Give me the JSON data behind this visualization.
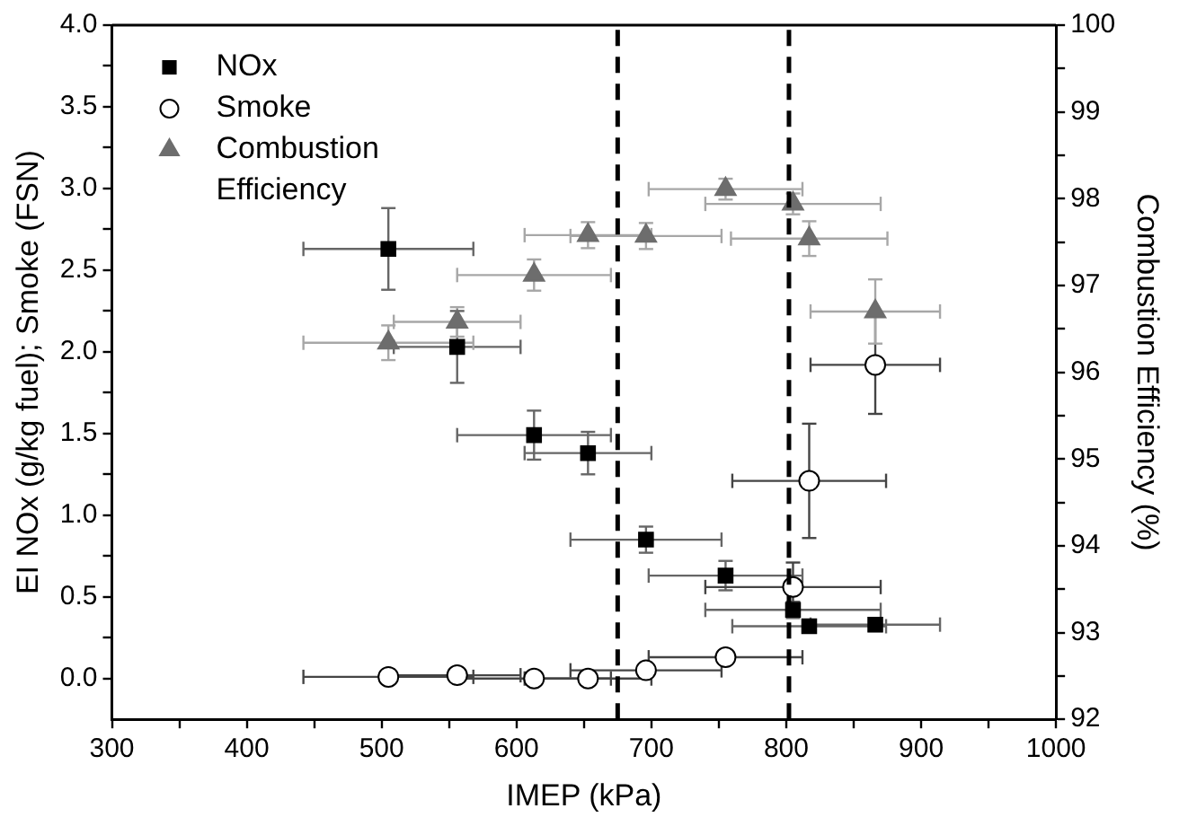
{
  "chart_data": {
    "type": "scatter",
    "xlabel": "IMEP (kPa)",
    "ylabel": "EI NOx (g/kg fuel); Smoke (FSN)",
    "y2label": "Combustion Efficiency (%)",
    "x": [
      505,
      556,
      613,
      653,
      696,
      755,
      805,
      817,
      866
    ],
    "series": [
      {
        "name": "NOx",
        "color": "#000000",
        "marker": "square",
        "values": [
          2.63,
          2.03,
          1.49,
          1.38,
          0.85,
          0.63,
          0.42,
          0.32,
          0.33
        ],
        "errors": [
          0.25,
          0.22,
          0.15,
          0.13,
          0.08,
          0.09,
          0.05,
          0.04,
          0.04
        ],
        "xerrors": [
          63,
          47,
          57,
          47,
          56,
          57,
          65,
          57,
          48
        ]
      },
      {
        "name": "Smoke",
        "color": "#ffffff",
        "marker": "circle",
        "values": [
          0.01,
          0.02,
          0.0,
          0.0,
          0.05,
          0.13,
          0.56,
          1.21,
          1.92
        ],
        "errors": [
          null,
          null,
          null,
          null,
          null,
          null,
          0.15,
          0.35,
          0.3
        ],
        "xerrors": [
          63,
          47,
          57,
          47,
          56,
          57,
          65,
          57,
          48
        ]
      },
      {
        "name": "Combustion Efficiency",
        "color": "#6d6d6d",
        "marker": "triangle",
        "axis": "y2",
        "values": [
          96.34,
          96.58,
          97.12,
          97.58,
          97.57,
          98.11,
          97.94,
          97.54,
          96.7
        ],
        "errors": [
          0.2,
          0.17,
          0.18,
          0.15,
          0.15,
          0.12,
          0.12,
          0.2,
          0.37
        ],
        "xerrors": [
          63,
          47,
          57,
          47,
          56,
          57,
          65,
          58,
          48
        ]
      }
    ],
    "xlim": [
      300,
      1000
    ],
    "xticks": [
      300,
      {
        "value": 350,
        "label": null
      },
      400,
      {
        "value": 450,
        "label": null
      },
      500,
      {
        "value": 550,
        "label": null
      },
      600,
      {
        "value": 650,
        "label": null
      },
      700,
      {
        "value": 750,
        "label": null
      },
      800,
      {
        "value": 850,
        "label": null
      },
      900,
      {
        "value": 950,
        "label": null
      },
      1000
    ],
    "ylim": [
      -0.25,
      4
    ],
    "yticks": [
      {
        "value": 0,
        "label": "0.0"
      },
      {
        "value": 0.25,
        "label": null
      },
      {
        "value": 0.5,
        "label": "0.5"
      },
      {
        "value": 0.75,
        "label": null
      },
      {
        "value": 1,
        "label": "1.0"
      },
      {
        "value": 1.25,
        "label": null
      },
      {
        "value": 1.5,
        "label": "1.5"
      },
      {
        "value": 1.75,
        "label": null
      },
      {
        "value": 2,
        "label": "2.0"
      },
      {
        "value": 2.25,
        "label": null
      },
      {
        "value": 2.5,
        "label": "2.5"
      },
      {
        "value": 2.75,
        "label": null
      },
      {
        "value": 3,
        "label": "3.0"
      },
      {
        "value": 3.25,
        "label": null
      },
      {
        "value": 3.5,
        "label": "3.5"
      },
      {
        "value": 3.75,
        "label": null
      },
      {
        "value": 4,
        "label": "4.0"
      }
    ],
    "y2lim": [
      92,
      100
    ],
    "y2ticks": [
      92,
      {
        "value": 92.5,
        "label": null
      },
      93,
      {
        "value": 93.5,
        "label": null
      },
      94,
      {
        "value": 94.5,
        "label": null
      },
      95,
      {
        "value": 95.5,
        "label": null
      },
      96,
      {
        "value": 96.5,
        "label": null
      },
      97,
      {
        "value": 97.5,
        "label": null
      },
      98,
      {
        "value": 98.5,
        "label": null
      },
      99,
      {
        "value": 99.5,
        "label": null
      },
      100
    ],
    "ref_lines": [
      {
        "axis": "x",
        "value": 675,
        "color": "#000000",
        "line_style": "dashed"
      },
      {
        "axis": "x",
        "value": 802,
        "color": "#000000",
        "line_style": "dashed"
      }
    ],
    "grid": false,
    "legend": "top left"
  }
}
